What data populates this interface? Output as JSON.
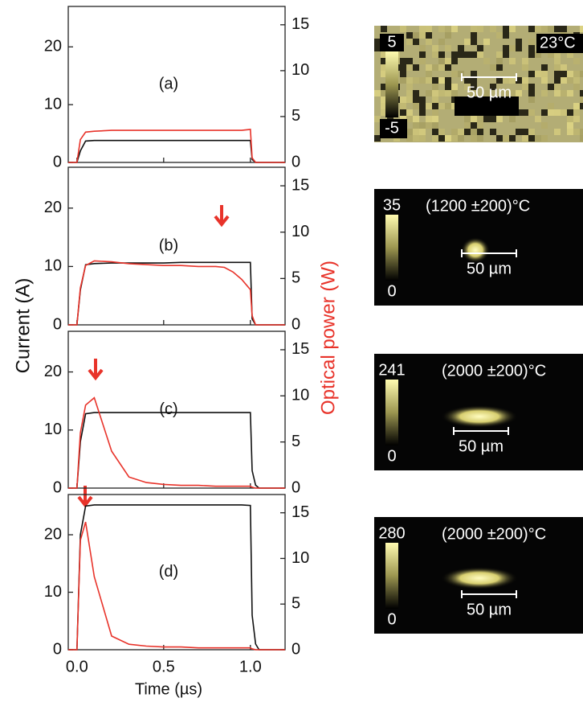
{
  "chart_data": [
    {
      "type": "line",
      "label": "(a)",
      "x": [
        -0.05,
        0.0,
        0.02,
        0.05,
        0.1,
        0.2,
        0.3,
        0.4,
        0.5,
        0.6,
        0.7,
        0.8,
        0.85,
        0.9,
        0.95,
        1.0,
        1.01,
        1.03,
        1.05,
        1.2
      ],
      "series": [
        {
          "name": "Current",
          "color": "#111111",
          "values": [
            0,
            0,
            2,
            3.7,
            3.8,
            3.8,
            3.8,
            3.8,
            3.8,
            3.8,
            3.8,
            3.8,
            3.8,
            3.8,
            3.8,
            3.8,
            0.5,
            0,
            0,
            0
          ]
        },
        {
          "name": "Optical power",
          "color": "#e8332a",
          "axis": "y2",
          "values": [
            0,
            0,
            2.5,
            3.3,
            3.4,
            3.5,
            3.5,
            3.5,
            3.5,
            3.5,
            3.5,
            3.5,
            3.5,
            3.5,
            3.5,
            3.6,
            0.5,
            0,
            0,
            0
          ]
        }
      ],
      "xlim": [
        -0.05,
        1.2
      ],
      "xticks": [
        0,
        0.5,
        1
      ],
      "ylim": [
        0,
        27
      ],
      "yticks": [
        0,
        10,
        20
      ],
      "y2lim": [
        0,
        17
      ],
      "y2ticks": [
        0,
        5,
        10,
        15
      ]
    },
    {
      "type": "line",
      "label": "(b)",
      "x": [
        -0.05,
        0.0,
        0.02,
        0.05,
        0.1,
        0.2,
        0.3,
        0.4,
        0.5,
        0.6,
        0.7,
        0.8,
        0.85,
        0.9,
        0.95,
        1.0,
        1.01,
        1.03,
        1.05,
        1.2
      ],
      "series": [
        {
          "name": "Current",
          "color": "#111111",
          "values": [
            0,
            0,
            6,
            10.3,
            10.5,
            10.6,
            10.6,
            10.6,
            10.6,
            10.7,
            10.7,
            10.7,
            10.7,
            10.7,
            10.7,
            10.7,
            1,
            0,
            0,
            0
          ]
        },
        {
          "name": "Optical power",
          "color": "#e8332a",
          "axis": "y2",
          "values": [
            0,
            0,
            4,
            6.4,
            6.9,
            6.8,
            6.6,
            6.5,
            6.4,
            6.4,
            6.3,
            6.3,
            6.2,
            5.7,
            4.9,
            3.8,
            1,
            0,
            0,
            0
          ]
        }
      ],
      "xlim": [
        -0.05,
        1.2
      ],
      "xticks": [
        0,
        0.5,
        1
      ],
      "ylim": [
        0,
        27
      ],
      "yticks": [
        0,
        10,
        20
      ],
      "y2lim": [
        0,
        17
      ],
      "y2ticks": [
        0,
        5,
        10,
        15
      ]
    },
    {
      "type": "line",
      "label": "(c)",
      "x": [
        -0.05,
        0.0,
        0.02,
        0.05,
        0.1,
        0.2,
        0.3,
        0.4,
        0.5,
        0.6,
        0.7,
        0.8,
        0.85,
        0.9,
        0.95,
        1.0,
        1.01,
        1.03,
        1.05,
        1.2
      ],
      "series": [
        {
          "name": "Current",
          "color": "#111111",
          "values": [
            0,
            0,
            8,
            12.8,
            13,
            13,
            13,
            13,
            13,
            13,
            13,
            13,
            13,
            13,
            13,
            13,
            3,
            0.5,
            0,
            0
          ]
        },
        {
          "name": "Optical power",
          "color": "#e8332a",
          "axis": "y2",
          "values": [
            0,
            0,
            6,
            9,
            9.8,
            4,
            1.2,
            0.6,
            0.4,
            0.3,
            0.3,
            0.2,
            0.2,
            0.2,
            0.2,
            0.2,
            0.1,
            0,
            0,
            0
          ]
        }
      ],
      "xlim": [
        -0.05,
        1.2
      ],
      "xticks": [
        0,
        0.5,
        1
      ],
      "ylim": [
        0,
        27
      ],
      "yticks": [
        0,
        10,
        20
      ],
      "y2lim": [
        0,
        17
      ],
      "y2ticks": [
        0,
        5,
        10,
        15
      ]
    },
    {
      "type": "line",
      "label": "(d)",
      "x": [
        -0.05,
        0.0,
        0.02,
        0.05,
        0.1,
        0.2,
        0.3,
        0.4,
        0.5,
        0.6,
        0.7,
        0.8,
        0.85,
        0.9,
        0.95,
        1.0,
        1.01,
        1.03,
        1.05,
        1.2
      ],
      "series": [
        {
          "name": "Current",
          "color": "#111111",
          "values": [
            0,
            0,
            20,
            25,
            25.2,
            25.2,
            25.2,
            25.2,
            25.2,
            25.2,
            25.2,
            25.2,
            25.2,
            25.2,
            25.2,
            25.1,
            6,
            1,
            0,
            0
          ]
        },
        {
          "name": "Optical power",
          "color": "#e8332a",
          "axis": "y2",
          "values": [
            0,
            0,
            12,
            14,
            8,
            1.5,
            0.6,
            0.4,
            0.3,
            0.3,
            0.2,
            0.2,
            0.2,
            0.2,
            0.2,
            0.2,
            0.1,
            0,
            0,
            0
          ]
        }
      ],
      "xlim": [
        -0.05,
        1.2
      ],
      "xticks": [
        {
          "value": 0,
          "label": "0.0"
        },
        {
          "value": 0.5,
          "label": "0.5"
        },
        {
          "value": 1,
          "label": "1.0"
        }
      ],
      "ylim": [
        0,
        27
      ],
      "yticks": [
        0,
        10,
        20
      ],
      "y2lim": [
        0,
        17
      ],
      "y2ticks": [
        0,
        5,
        10,
        15
      ],
      "xlabel": "Time (µs)"
    }
  ],
  "ylabel": "Current (A)",
  "y2label": "Optical power (W)",
  "images": [
    {
      "max": "5",
      "min": "-5",
      "temperature": "23°C",
      "scale": "50 µm"
    },
    {
      "max": "35",
      "min": "0",
      "temperature": "(1200 ±200)°C",
      "scale": "50 µm"
    },
    {
      "max": "241",
      "min": "0",
      "temperature": "(2000 ±200)°C",
      "scale": "50 µm"
    },
    {
      "max": "280",
      "min": "0",
      "temperature": "(2000 ±200)°C",
      "scale": "50 µm"
    }
  ]
}
